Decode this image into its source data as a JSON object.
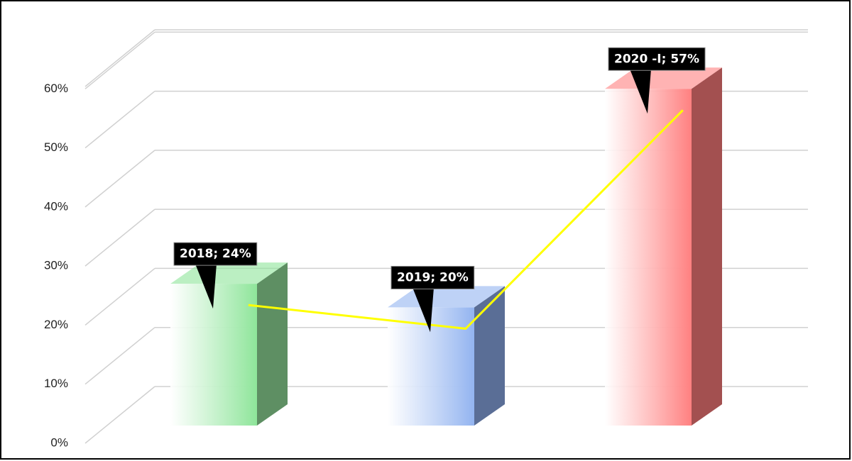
{
  "chart_data": {
    "type": "bar3d",
    "categories": [
      "2018",
      "2019",
      "2020 -I"
    ],
    "values": [
      24,
      20,
      57
    ],
    "value_labels": [
      "2018; 24%",
      "2019; 20%",
      "2020 -I; 57%"
    ],
    "colors": [
      "#8ee59a",
      "#93b4f0",
      "#ff8080"
    ],
    "side_colors": [
      "#5e8f63",
      "#5a6e96",
      "#a35050"
    ],
    "line_color": "#ffff00",
    "ylim": [
      0,
      70
    ],
    "yticks": [
      {
        "value": 0,
        "label": "0%"
      },
      {
        "value": 10,
        "label": "10%"
      },
      {
        "value": 20,
        "label": "20%"
      },
      {
        "value": 30,
        "label": "30%"
      },
      {
        "value": 40,
        "label": "40%"
      },
      {
        "value": 50,
        "label": "50%"
      },
      {
        "value": 60,
        "label": "60%"
      }
    ],
    "grid": true
  }
}
